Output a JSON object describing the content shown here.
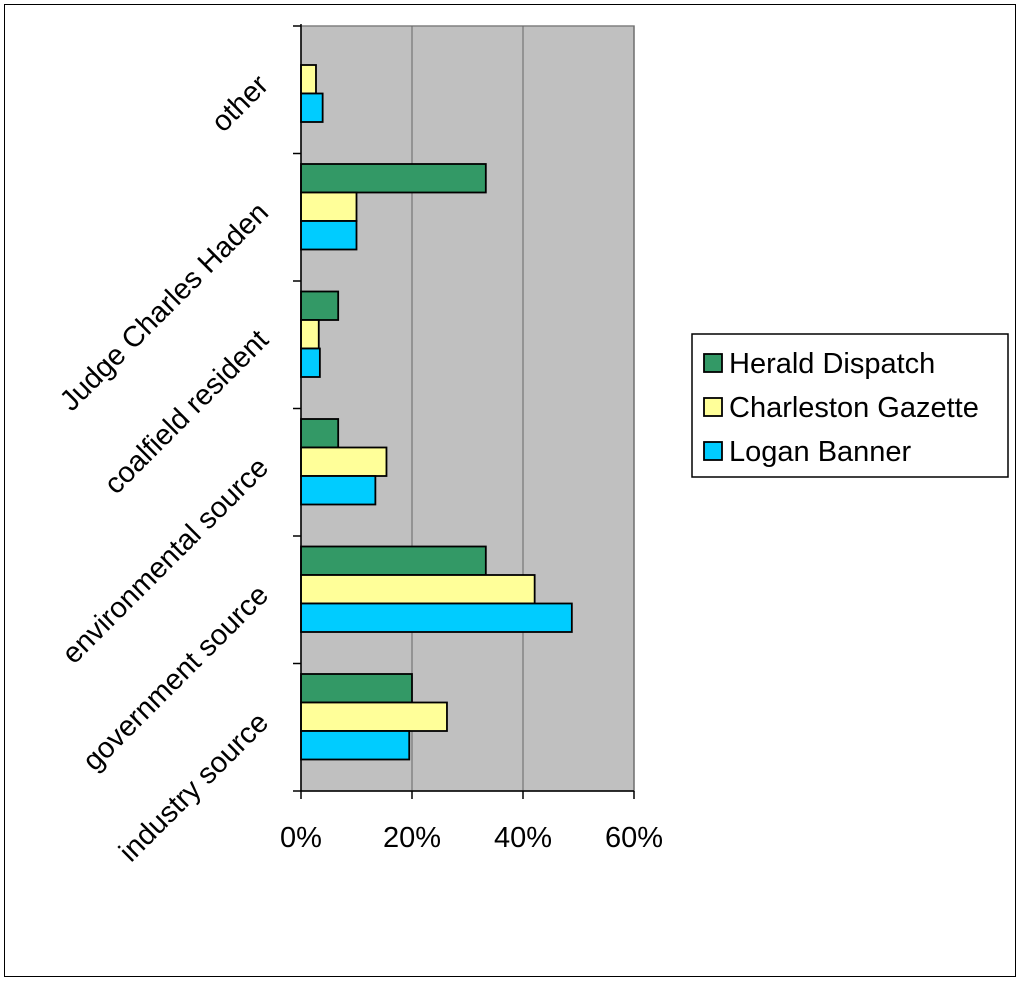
{
  "chart_data": {
    "type": "bar",
    "orientation": "horizontal",
    "title": "",
    "xlabel": "",
    "ylabel": "",
    "xlim": [
      0,
      60
    ],
    "x_tick_labels": [
      "0%",
      "20%",
      "40%",
      "60%"
    ],
    "x_ticks": [
      0,
      20,
      40,
      60
    ],
    "grid": true,
    "legend_position": "right",
    "categories": [
      "industry source",
      "government source",
      "environmental source",
      "coalfield resident",
      "Judge Charles Haden",
      "other"
    ],
    "series": [
      {
        "name": "Herald Dispatch",
        "color": "#339966",
        "values": [
          20.0,
          33.3,
          6.7,
          6.7,
          33.3,
          0
        ]
      },
      {
        "name": "Charleston Gazette",
        "color": "#ffff99",
        "values": [
          26.3,
          42.1,
          15.4,
          3.2,
          10.0,
          2.7
        ]
      },
      {
        "name": "Logan Banner",
        "color": "#00ccff",
        "values": [
          19.5,
          48.8,
          13.4,
          3.4,
          10.0,
          3.9
        ]
      }
    ],
    "plot_background": "#c0c0c0"
  }
}
